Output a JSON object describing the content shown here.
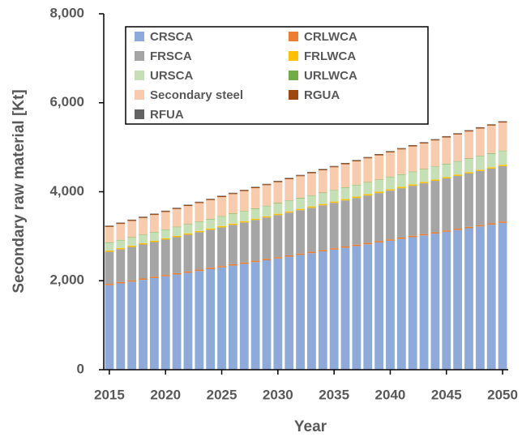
{
  "chart_data": {
    "type": "stacked_bar",
    "x_label": "Year",
    "y_label": "Secondary raw material [Kt]",
    "x": [
      2015,
      2016,
      2017,
      2018,
      2019,
      2020,
      2021,
      2022,
      2023,
      2024,
      2025,
      2026,
      2027,
      2028,
      2029,
      2030,
      2031,
      2032,
      2033,
      2034,
      2035,
      2036,
      2037,
      2038,
      2039,
      2040,
      2041,
      2042,
      2043,
      2044,
      2045,
      2046,
      2047,
      2048,
      2049,
      2050
    ],
    "xlim": [
      2014.5,
      2050.5
    ],
    "xticks": [
      2015,
      2020,
      2025,
      2030,
      2035,
      2040,
      2045,
      2050
    ],
    "ylim": [
      0,
      8000
    ],
    "yticks": [
      0,
      {
        "value": 2000,
        "label": "2,000"
      },
      {
        "value": 4000,
        "label": "4,000"
      },
      {
        "value": 6000,
        "label": "6,000"
      },
      {
        "value": 8000,
        "label": "8,000"
      }
    ],
    "grid": false,
    "series": [
      {
        "name": "CRSCA",
        "color": "#8eaadb",
        "values": [
          1900,
          1940,
          1980,
          2020,
          2060,
          2100,
          2140,
          2180,
          2220,
          2260,
          2300,
          2340,
          2380,
          2420,
          2460,
          2500,
          2540,
          2580,
          2620,
          2660,
          2700,
          2740,
          2780,
          2820,
          2860,
          2900,
          2940,
          2980,
          3020,
          3060,
          3100,
          3140,
          3180,
          3220,
          3260,
          3300
        ]
      },
      {
        "name": "CRLWCA",
        "color": "#ed7d31",
        "values": [
          30,
          30,
          30,
          30,
          30,
          30,
          30,
          30,
          30,
          30,
          30,
          30,
          30,
          30,
          30,
          30,
          30,
          30,
          30,
          30,
          30,
          30,
          30,
          30,
          30,
          30,
          30,
          30,
          30,
          30,
          30,
          30,
          30,
          30,
          30,
          30
        ]
      },
      {
        "name": "FRSCA",
        "color": "#a5a5a5",
        "values": [
          720,
          735,
          750,
          765,
          780,
          795,
          810,
          825,
          840,
          855,
          870,
          885,
          900,
          915,
          930,
          945,
          960,
          975,
          990,
          1005,
          1020,
          1035,
          1050,
          1065,
          1080,
          1095,
          1110,
          1125,
          1140,
          1155,
          1170,
          1185,
          1200,
          1215,
          1230,
          1245
        ]
      },
      {
        "name": "FRLWCA",
        "color": "#ffc000",
        "values": [
          30,
          30,
          30,
          30,
          30,
          30,
          30,
          30,
          30,
          30,
          30,
          30,
          30,
          30,
          30,
          30,
          30,
          30,
          30,
          30,
          30,
          30,
          30,
          30,
          30,
          30,
          30,
          30,
          30,
          30,
          30,
          30,
          30,
          30,
          30,
          30
        ]
      },
      {
        "name": "URSCA",
        "color": "#c5e0b4",
        "values": [
          170,
          174,
          178,
          182,
          186,
          190,
          194,
          198,
          202,
          206,
          210,
          214,
          218,
          222,
          226,
          230,
          234,
          238,
          242,
          246,
          250,
          254,
          258,
          262,
          266,
          270,
          274,
          278,
          282,
          286,
          290,
          294,
          298,
          302,
          306,
          310
        ]
      },
      {
        "name": "URLWCA",
        "color": "#70ad47",
        "values": [
          10,
          10,
          10,
          10,
          10,
          10,
          10,
          10,
          10,
          10,
          10,
          10,
          10,
          10,
          10,
          10,
          10,
          10,
          10,
          10,
          10,
          10,
          10,
          10,
          10,
          10,
          10,
          10,
          10,
          10,
          10,
          10,
          10,
          10,
          10,
          10
        ]
      },
      {
        "name": "Secondary steel",
        "color": "#f8cbad",
        "values": [
          350,
          358,
          366,
          374,
          382,
          390,
          398,
          406,
          414,
          422,
          430,
          438,
          446,
          454,
          462,
          470,
          478,
          486,
          494,
          502,
          510,
          518,
          526,
          534,
          542,
          550,
          558,
          566,
          574,
          582,
          590,
          598,
          606,
          614,
          622,
          630
        ]
      },
      {
        "name": "RGUA",
        "color": "#9e480e",
        "values": [
          20,
          20,
          20,
          20,
          20,
          20,
          20,
          20,
          20,
          20,
          20,
          20,
          20,
          20,
          20,
          20,
          20,
          20,
          20,
          20,
          20,
          20,
          20,
          20,
          20,
          20,
          20,
          20,
          20,
          20,
          20,
          20,
          20,
          20,
          20,
          20
        ]
      },
      {
        "name": "RFUA",
        "color": "#636363",
        "values": [
          10,
          10,
          10,
          10,
          10,
          10,
          10,
          10,
          10,
          10,
          10,
          10,
          10,
          10,
          10,
          10,
          10,
          10,
          10,
          10,
          10,
          10,
          10,
          10,
          10,
          10,
          10,
          10,
          10,
          10,
          10,
          10,
          10,
          10,
          10,
          10
        ]
      }
    ]
  }
}
